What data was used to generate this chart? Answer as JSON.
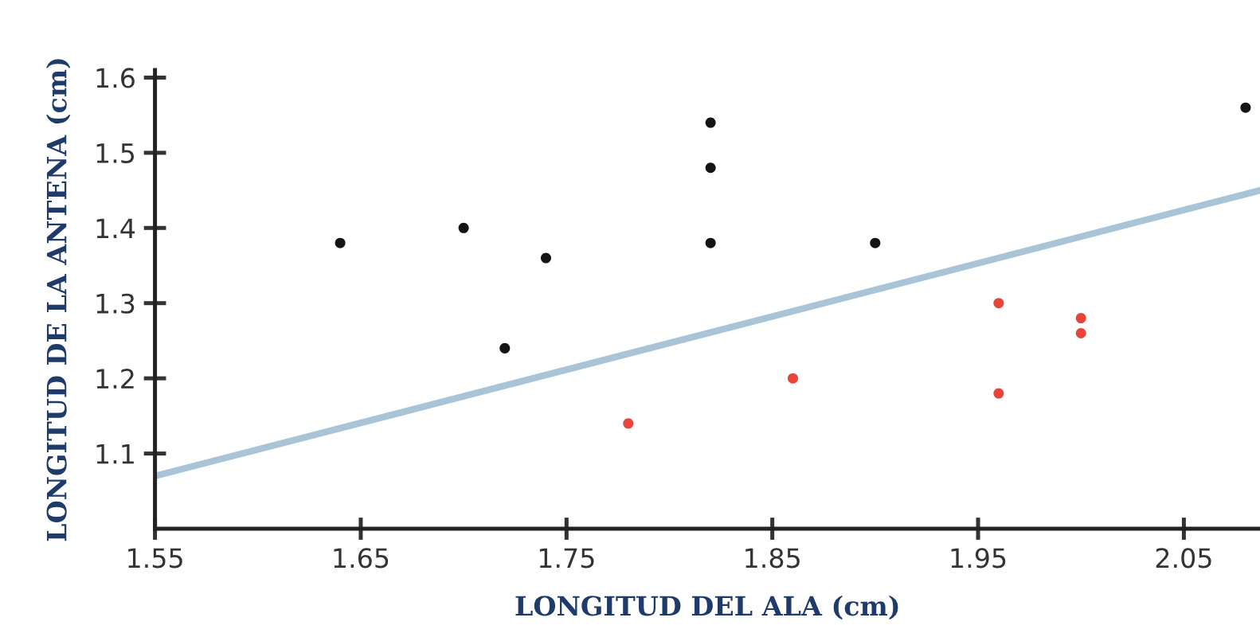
{
  "chart_data": {
    "type": "scatter",
    "xlabel": "LONGITUD DEL ALA (cm)",
    "ylabel": "LONGITUD DE LA ANTENA (cm)",
    "xlim": [
      1.55,
      2.087
    ],
    "ylim": [
      1.0,
      1.61
    ],
    "xticks": [
      1.55,
      1.65,
      1.75,
      1.85,
      1.95,
      2.05
    ],
    "yticks": [
      1.1,
      1.2,
      1.3,
      1.4,
      1.5,
      1.6
    ],
    "grid": false,
    "marker": "circle",
    "series": [
      {
        "color": "#141414",
        "x": [
          1.64,
          1.7,
          1.72,
          1.74,
          1.82,
          1.82,
          1.82,
          1.9,
          2.08
        ],
        "values": [
          1.38,
          1.4,
          1.24,
          1.36,
          1.38,
          1.48,
          1.54,
          1.38,
          1.56
        ]
      },
      {
        "color": "#e8443a",
        "x": [
          1.78,
          1.86,
          1.96,
          1.96,
          2.0,
          2.0
        ],
        "values": [
          1.14,
          1.2,
          1.3,
          1.18,
          1.26,
          1.28
        ]
      },
      {
        "type": "line",
        "color": "#a9c4d6",
        "x": [
          1.55,
          2.087
        ],
        "values": [
          1.07,
          1.45
        ],
        "marker": "none"
      }
    ]
  }
}
